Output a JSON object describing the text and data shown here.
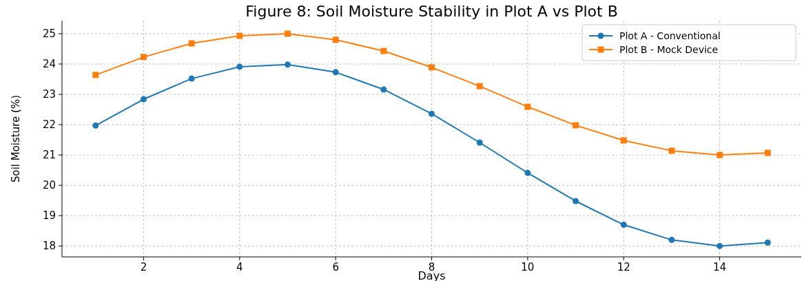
{
  "chart_data": {
    "type": "line",
    "title": "Figure 8: Soil Moisture Stability in Plot A vs Plot B",
    "xlabel": "Days",
    "ylabel": "Soil Moisture (%)",
    "x": [
      1,
      2,
      3,
      4,
      5,
      6,
      7,
      8,
      9,
      10,
      11,
      12,
      13,
      14,
      15
    ],
    "series": [
      {
        "name": "Plot A - Conventional",
        "color": "#1f77b4",
        "marker": "circle",
        "values": [
          21.97,
          22.84,
          23.52,
          23.91,
          23.98,
          23.73,
          23.16,
          22.36,
          21.41,
          20.41,
          19.48,
          18.7,
          18.2,
          18.0,
          18.11
        ]
      },
      {
        "name": "Plot B - Mock Device",
        "color": "#ff7f0e",
        "marker": "square",
        "values": [
          23.64,
          24.23,
          24.68,
          24.93,
          25.0,
          24.8,
          24.43,
          23.89,
          23.27,
          22.59,
          21.98,
          21.48,
          21.14,
          21.0,
          21.07
        ]
      }
    ],
    "xlim": [
      0.3,
      15.7
    ],
    "ylim": [
      17.64,
      25.43
    ],
    "xticks": [
      2,
      4,
      6,
      8,
      10,
      12,
      14
    ],
    "yticks": [
      18,
      19,
      20,
      21,
      22,
      23,
      24,
      25
    ],
    "grid": true,
    "legend": "top right",
    "line_style": "solid"
  }
}
